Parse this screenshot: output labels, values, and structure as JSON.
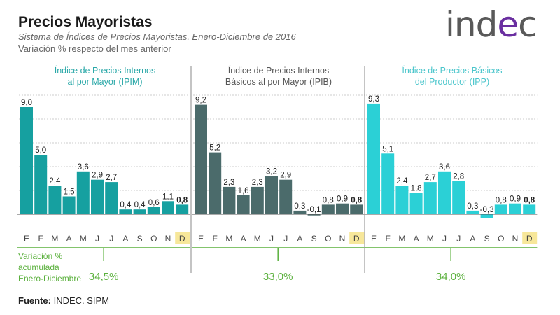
{
  "header": {
    "title": "Precios Mayoristas",
    "subtitle": "Sistema de Índices de Precios Mayoristas. Enero-Diciembre de 2016",
    "subtitle2": "Variación % respecto del mes anterior",
    "logo": "indec"
  },
  "accumulated_label": [
    "Variación %",
    "acumulada",
    "Enero-Diciembre"
  ],
  "source": {
    "label": "Fuente:",
    "text": "INDEC. SIPM"
  },
  "colors": {
    "ipim": "#16a0a0",
    "ipib": "#4b6b6b",
    "ipp": "#2bd0d6",
    "accent_green": "#5ab03c",
    "highlight": "#f7e79a",
    "title_teal": "#2aa8a8",
    "title_gray": "#555555",
    "title_cyan": "#4cc6cc"
  },
  "chart_data": [
    {
      "type": "bar",
      "title": "Índice de Precios Internos al por Mayor (IPIM)",
      "title_lines": [
        "Índice de Precios Internos",
        "al por Mayor (IPIM)"
      ],
      "categories": [
        "E",
        "F",
        "M",
        "A",
        "M",
        "J",
        "J",
        "A",
        "S",
        "O",
        "N",
        "D"
      ],
      "values": [
        9.0,
        5.0,
        2.4,
        1.5,
        3.6,
        2.9,
        2.7,
        0.4,
        0.4,
        0.6,
        1.1,
        0.8
      ],
      "labels": [
        "9,0",
        "5,0",
        "2,4",
        "1,5",
        "3,6",
        "2,9",
        "2,7",
        "0,4",
        "0,4",
        "0,6",
        "1,1",
        "0,8"
      ],
      "highlight_category": "D",
      "accumulated": "34,5%",
      "ylim": [
        -0.5,
        10
      ],
      "grid": true
    },
    {
      "type": "bar",
      "title": "Índice de Precios Internos Básicos al por Mayor (IPIB)",
      "title_lines": [
        "Índice de Precios Internos",
        "Básicos al por Mayor (IPIB)"
      ],
      "categories": [
        "E",
        "F",
        "M",
        "A",
        "M",
        "J",
        "J",
        "A",
        "S",
        "O",
        "N",
        "D"
      ],
      "values": [
        9.2,
        5.2,
        2.3,
        1.6,
        2.3,
        3.2,
        2.9,
        0.3,
        -0.1,
        0.8,
        0.9,
        0.8
      ],
      "labels": [
        "9,2",
        "5,2",
        "2,3",
        "1,6",
        "2,3",
        "3,2",
        "2,9",
        "0,3",
        "-0,1",
        "0,8",
        "0,9",
        "0,8"
      ],
      "highlight_category": "D",
      "accumulated": "33,0%",
      "ylim": [
        -0.5,
        10
      ],
      "grid": true
    },
    {
      "type": "bar",
      "title": "Índice de Precios Básicos del Productor (IPP)",
      "title_lines": [
        "Índice de Precios Básicos",
        "del Productor (IPP)"
      ],
      "categories": [
        "E",
        "F",
        "M",
        "A",
        "M",
        "J",
        "J",
        "A",
        "S",
        "O",
        "N",
        "D"
      ],
      "values": [
        9.3,
        5.1,
        2.4,
        1.8,
        2.7,
        3.6,
        2.8,
        0.3,
        -0.3,
        0.8,
        0.9,
        0.8
      ],
      "labels": [
        "9,3",
        "5,1",
        "2,4",
        "1,8",
        "2,7",
        "3,6",
        "2,8",
        "0,3",
        "-0,3",
        "0,8",
        "0,9",
        "0,8"
      ],
      "highlight_category": "D",
      "accumulated": "34,0%",
      "ylim": [
        -0.5,
        10
      ],
      "grid": true
    }
  ]
}
